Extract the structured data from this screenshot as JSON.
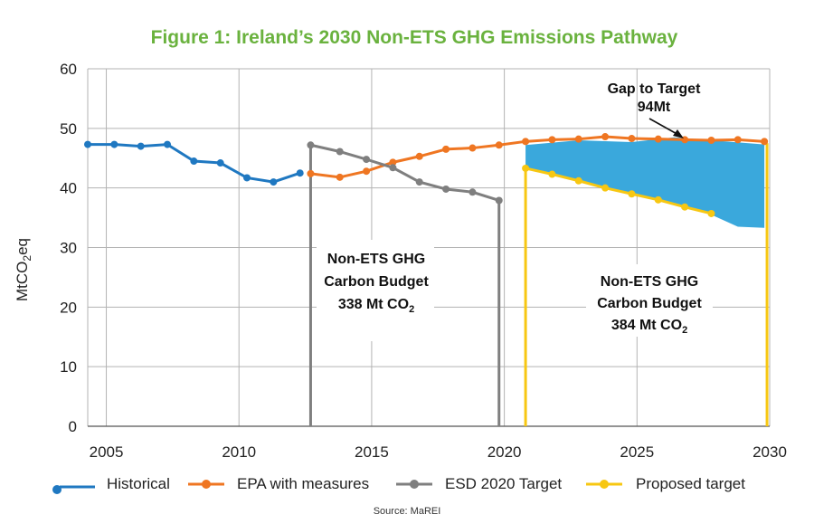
{
  "chart_data": {
    "type": "line",
    "title": "Figure 1: Ireland’s 2030 Non-ETS GHG Emissions Pathway",
    "ylabel_main": "MtCO",
    "ylabel_sub": "2",
    "ylabel_tail": "eq",
    "xlim": [
      2004.3,
      2030
    ],
    "ylim": [
      0,
      60
    ],
    "x_ticks": [
      2005,
      2010,
      2015,
      2020,
      2025,
      2030
    ],
    "y_ticks": [
      0,
      10,
      20,
      30,
      40,
      50,
      60
    ],
    "grid": true,
    "legend_position": "bottom",
    "series": [
      {
        "name": "Historical",
        "color": "#1f78c1",
        "x": [
          2004.3,
          2005.3,
          2006.3,
          2007.3,
          2008.3,
          2009.3,
          2010.3,
          2011.3,
          2012.3
        ],
        "y": [
          47.3,
          47.3,
          47.0,
          47.3,
          44.5,
          44.2,
          41.7,
          41.0,
          42.5
        ]
      },
      {
        "name": "EPA with measures",
        "color": "#ef7622",
        "x": [
          2012.7,
          2013.8,
          2014.8,
          2015.8,
          2016.8,
          2017.8,
          2018.8,
          2019.8,
          2020.8,
          2021.8,
          2022.8,
          2023.8,
          2024.8,
          2025.8,
          2026.8,
          2027.8,
          2028.8,
          2029.8
        ],
        "y": [
          42.4,
          41.8,
          42.8,
          44.3,
          45.3,
          46.5,
          46.7,
          47.2,
          47.8,
          48.1,
          48.2,
          48.6,
          48.3,
          48.2,
          48.1,
          48.0,
          48.1,
          47.8
        ]
      },
      {
        "name": "ESD 2020 Target",
        "color": "#7f7f7f",
        "x": [
          2012.7,
          2013.8,
          2014.8,
          2015.8,
          2016.8,
          2017.8,
          2018.8,
          2019.8
        ],
        "y": [
          47.2,
          46.1,
          44.8,
          43.4,
          41.0,
          39.8,
          39.3,
          37.9
        ]
      },
      {
        "name": "Proposed target",
        "color": "#f7c712",
        "x": [
          2020.8,
          2021.8,
          2022.8,
          2023.8,
          2024.8,
          2025.8,
          2026.8,
          2027.8
        ],
        "y": [
          43.3,
          42.3,
          41.2,
          40.0,
          39.0,
          38.0,
          36.8,
          35.7
        ]
      }
    ],
    "vertical_lines": [
      {
        "series": "ESD 2020 Target",
        "x": 2012.7,
        "y_top": 47.2
      },
      {
        "series": "ESD 2020 Target",
        "x": 2019.8,
        "y_top": 37.9
      },
      {
        "series": "Proposed target",
        "x": 2020.8,
        "y_top": 43.3
      },
      {
        "series": "Proposed target",
        "x": 2029.9,
        "y_top": 47.5
      }
    ],
    "gap_region": {
      "color": "#3aa8dc",
      "top": [
        [
          2020.8,
          47.2
        ],
        [
          2022.8,
          48.0
        ],
        [
          2024.8,
          47.7
        ],
        [
          2026.4,
          48.5
        ],
        [
          2027.8,
          48.0
        ],
        [
          2029.8,
          47.3
        ]
      ],
      "bottom": [
        [
          2029.8,
          33.3
        ],
        [
          2028.8,
          33.5
        ],
        [
          2027.8,
          35.5
        ],
        [
          2025.8,
          37.8
        ],
        [
          2023.8,
          40.2
        ],
        [
          2022.8,
          41.0
        ],
        [
          2020.8,
          43.3
        ]
      ]
    },
    "annotations": {
      "gap_line1": "Gap to Target",
      "gap_line2": "94Mt",
      "budget1_line1": "Non-ETS GHG",
      "budget1_line2": "Carbon Budget",
      "budget1_line3": "338 Mt CO",
      "budget1_sub": "2",
      "budget2_line1": "Non-ETS GHG",
      "budget2_line2": "Carbon Budget",
      "budget2_line3": "384 Mt CO",
      "budget2_sub": "2"
    },
    "source": "Source: MaREI"
  },
  "colors": {
    "title": "#6ab23e",
    "grid": "#b3b3b3",
    "axis": "#555555"
  }
}
